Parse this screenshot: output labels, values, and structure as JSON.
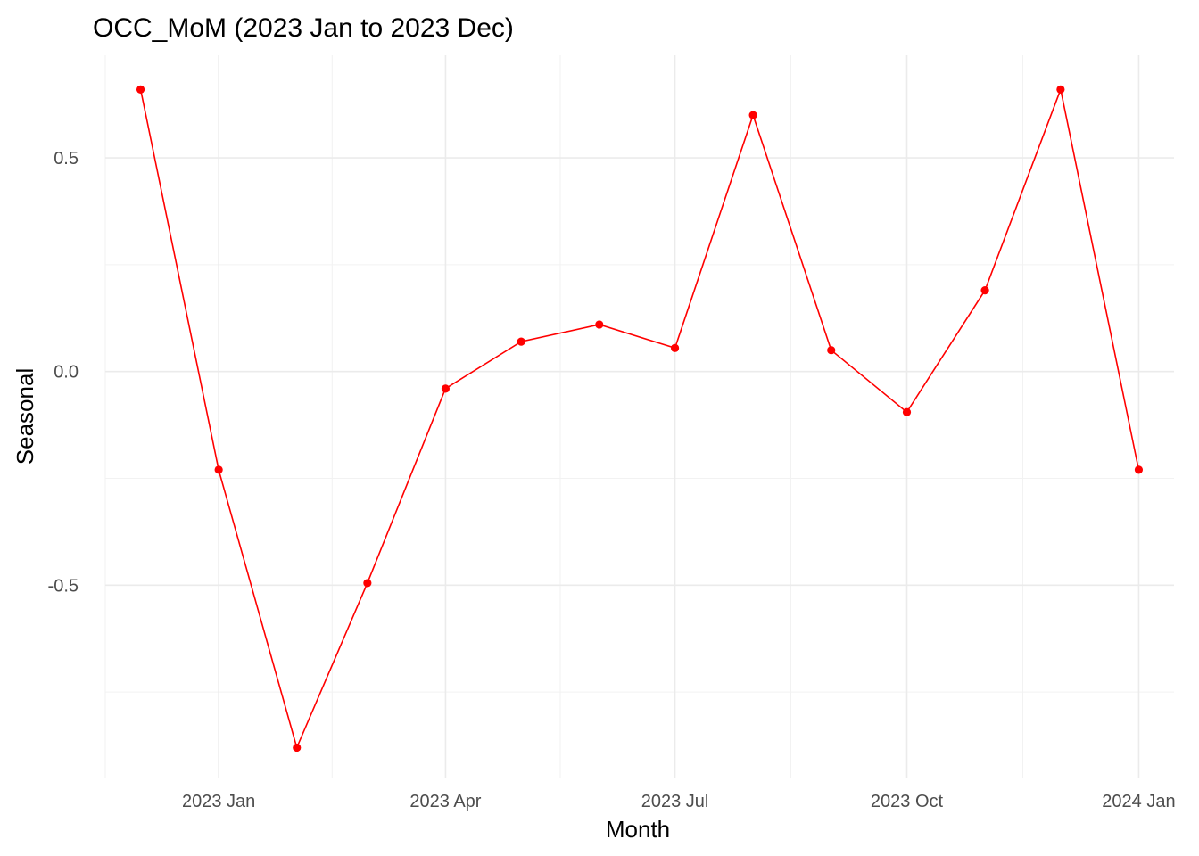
{
  "chart_data": {
    "type": "line",
    "title": "OCC_MoM (2023 Jan to 2023 Dec)",
    "xlabel": "Month",
    "ylabel": "Seasonal",
    "grid": true,
    "x_ticks": [
      "2023 Jan",
      "2023 Apr",
      "2023 Jul",
      "2023 Oct",
      "2024 Jan"
    ],
    "x_tick_dates": [
      "2023-01-01",
      "2023-04-01",
      "2023-07-01",
      "2023-10-01",
      "2024-01-01"
    ],
    "y_ticks": [
      "-0.5",
      "0.0",
      "0.5"
    ],
    "y_tick_values": [
      -0.5,
      0.0,
      0.5
    ],
    "ylim": [
      -0.95,
      0.74
    ],
    "xlim": [
      "2022-11-17",
      "2024-01-15"
    ],
    "series": [
      {
        "color": "#ff0000",
        "x": [
          "2022-12-01",
          "2023-01-01",
          "2023-02-01",
          "2023-03-01",
          "2023-04-01",
          "2023-05-01",
          "2023-06-01",
          "2023-07-01",
          "2023-08-01",
          "2023-09-01",
          "2023-10-01",
          "2023-11-01",
          "2023-12-01",
          "2024-01-01"
        ],
        "values": [
          0.66,
          -0.23,
          -0.88,
          -0.495,
          -0.04,
          0.07,
          0.11,
          0.055,
          0.6,
          0.05,
          -0.095,
          0.19,
          0.66,
          -0.23
        ]
      }
    ]
  }
}
